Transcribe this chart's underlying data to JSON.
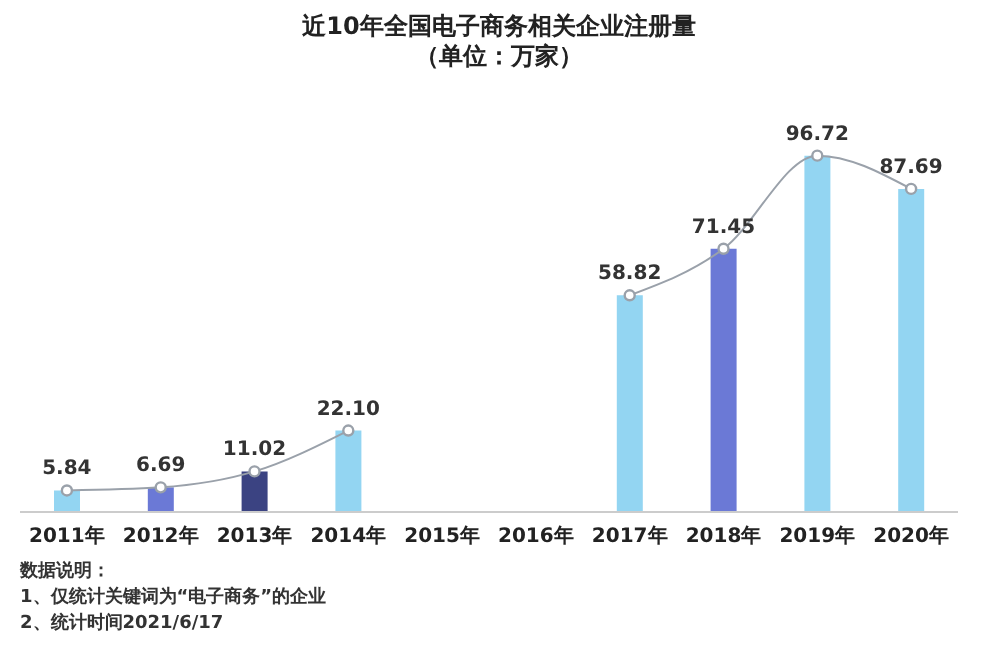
{
  "chart_data": {
    "type": "bar",
    "title": "近10年全国电子商务相关企业注册量",
    "subtitle": "（单位：万家）",
    "categories": [
      "2011年",
      "2012年",
      "2013年",
      "2014年",
      "2015年",
      "2016年",
      "2017年",
      "2018年",
      "2019年",
      "2020年"
    ],
    "series": [
      {
        "colors": [
          "#93d5f2",
          "#6b79d6",
          "#3b4382",
          "#93d5f2",
          "#6b79d6",
          "#3b4382",
          "#93d5f2",
          "#6b79d6",
          "#93d5f2",
          "#93d5f2"
        ],
        "values": [
          5.84,
          6.69,
          11.02,
          22.1,
          null,
          null,
          58.82,
          71.45,
          96.72,
          87.69
        ]
      },
      {
        "type": "line",
        "color": "#9aa1aa",
        "values": [
          5.84,
          6.69,
          11.02,
          22.1,
          null,
          null,
          58.82,
          71.45,
          96.72,
          87.69
        ],
        "value_labels": [
          "5.84",
          "6.69",
          "11.02",
          "22.10",
          null,
          null,
          "58.82",
          "71.45",
          "96.72",
          "87.69"
        ]
      }
    ],
    "tick_labels": "x",
    "marker": "circle",
    "grid": false,
    "legend": false,
    "annotations": [
      "数据说明：",
      "1、仅统计关键词为“电子商务”的企业",
      "2、统计时间2021/6/17"
    ]
  }
}
